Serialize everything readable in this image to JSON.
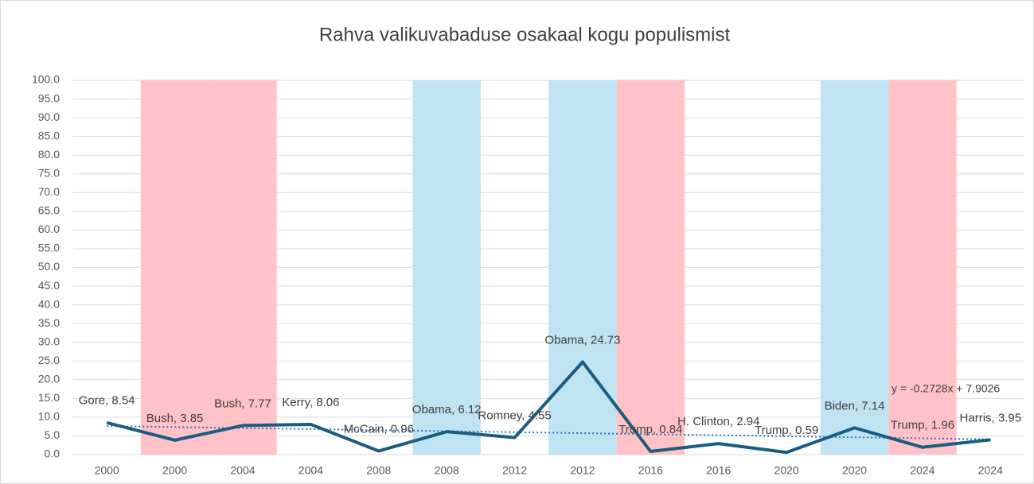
{
  "chart_data": {
    "type": "line",
    "title": "Rahva valikuvabaduse osakaal kogu populismist",
    "categories": [
      "2000",
      "2000",
      "2004",
      "2004",
      "2008",
      "2008",
      "2012",
      "2012",
      "2016",
      "2016",
      "2020",
      "2020",
      "2024",
      "2024"
    ],
    "series": [
      {
        "color": "#1b5d82",
        "values": [
          8.54,
          3.85,
          7.77,
          8.06,
          0.96,
          6.12,
          4.55,
          24.73,
          0.84,
          2.94,
          0.59,
          7.14,
          1.96,
          3.95
        ],
        "value_labels": [
          "Gore, 8.54",
          "Bush, 3.85",
          "Bush, 7.77",
          "Kerry, 8.06",
          "McCain, 0.96",
          "Obama, 6.12",
          "Romney, 4.55",
          "Obama, 24.73",
          "Trump, 0.84",
          "H. Clinton, 2.94",
          "Trump, 0.59",
          "Biden, 7.14",
          "Trump, 1.96",
          "Harris, 3.95"
        ]
      }
    ],
    "bands": {
      "values": [
        null,
        100,
        100,
        null,
        null,
        100,
        null,
        100,
        100,
        null,
        null,
        100,
        100,
        null
      ],
      "colors": [
        null,
        "#ffc2c7",
        "#ffc2c7",
        null,
        null,
        "#bfe3f1",
        null,
        "#bfe3f1",
        "#ffc2c7",
        null,
        null,
        "#bfe3f1",
        "#ffc2c7",
        null
      ]
    },
    "trendline": {
      "slope": -0.2728,
      "intercept": 7.9026,
      "label": "y = -0.2728x + 7.9026",
      "color": "#2e75b6"
    },
    "ylim": [
      0,
      100
    ],
    "yticks": [
      {
        "value": 0,
        "label": "0.0"
      },
      {
        "value": 5,
        "label": "5.0"
      },
      {
        "value": 10,
        "label": "10.0"
      },
      {
        "value": 15,
        "label": "15.0"
      },
      {
        "value": 20,
        "label": "20.0"
      },
      {
        "value": 25,
        "label": "25.0"
      },
      {
        "value": 30,
        "label": "30.0"
      },
      {
        "value": 35,
        "label": "35.0"
      },
      {
        "value": 40,
        "label": "40.0"
      },
      {
        "value": 45,
        "label": "45.0"
      },
      {
        "value": 50,
        "label": "50.0"
      },
      {
        "value": 55,
        "label": "55.0"
      },
      {
        "value": 60,
        "label": "60.0"
      },
      {
        "value": 65,
        "label": "65.0"
      },
      {
        "value": 70,
        "label": "70.0"
      },
      {
        "value": 75,
        "label": "75.0"
      },
      {
        "value": 80,
        "label": "80.0"
      },
      {
        "value": 85,
        "label": "85.0"
      },
      {
        "value": 90,
        "label": "90.0"
      },
      {
        "value": 95,
        "label": "95.0"
      },
      {
        "value": 100,
        "label": "100.0"
      }
    ],
    "grid": true
  }
}
